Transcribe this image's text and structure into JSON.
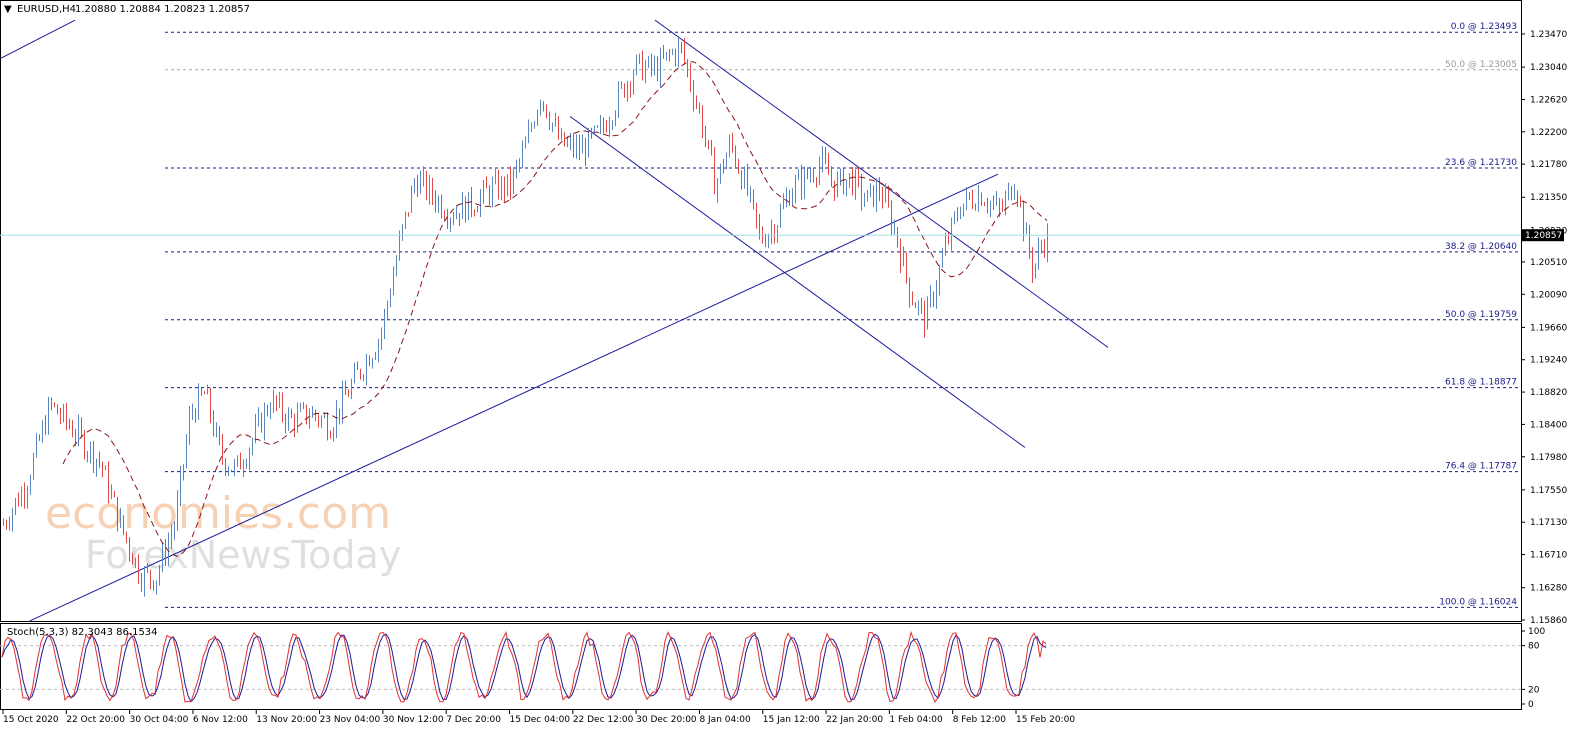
{
  "header": {
    "symbol": "EURUSD,H4",
    "ohlc": "1.20880 1.20884 1.20823 1.20857"
  },
  "watermark": {
    "line1": "economies.com",
    "line2": "ForexNewsToday"
  },
  "colors": {
    "bull": "#5b86c4",
    "bear": "#e04848",
    "ma": "#8b1515",
    "fib": "#1a1a8c",
    "trend": "#1a1a9c",
    "price_line": "#9fdfe6",
    "stoch_main": "#e03030",
    "stoch_signal": "#1a1a9c"
  },
  "price_label": "1.20857",
  "chart_data": {
    "type": "candlestick",
    "y_range": [
      1.1586,
      1.2347
    ],
    "y_ticks": [
      "1.23470",
      "1.23040",
      "1.22620",
      "1.22200",
      "1.21780",
      "1.21350",
      "1.20920",
      "1.20510",
      "1.20090",
      "1.19660",
      "1.19240",
      "1.18820",
      "1.18400",
      "1.17980",
      "1.17550",
      "1.17130",
      "1.16710",
      "1.16280",
      "1.15860"
    ],
    "x_labels": [
      "15 Oct 2020",
      "22 Oct 20:00",
      "30 Oct 04:00",
      "6 Nov 12:00",
      "13 Nov 20:00",
      "23 Nov 04:00",
      "30 Nov 12:00",
      "7 Dec 20:00",
      "15 Dec 04:00",
      "22 Dec 12:00",
      "30 Dec 20:00",
      "8 Jan 04:00",
      "15 Jan 12:00",
      "22 Jan 20:00",
      "1 Feb 04:00",
      "8 Feb 12:00",
      "15 Feb 20:00"
    ],
    "current_price": 1.20857,
    "close_path": [
      [
        0,
        1.1705
      ],
      [
        25,
        1.176
      ],
      [
        50,
        1.1865
      ],
      [
        75,
        1.183
      ],
      [
        100,
        1.179
      ],
      [
        120,
        1.171
      ],
      [
        140,
        1.1645
      ],
      [
        155,
        1.164
      ],
      [
        175,
        1.1715
      ],
      [
        190,
        1.1855
      ],
      [
        205,
        1.188
      ],
      [
        220,
        1.18
      ],
      [
        235,
        1.178
      ],
      [
        250,
        1.1815
      ],
      [
        270,
        1.187
      ],
      [
        290,
        1.1845
      ],
      [
        310,
        1.1855
      ],
      [
        330,
        1.184
      ],
      [
        355,
        1.19
      ],
      [
        380,
        1.1955
      ],
      [
        400,
        1.208
      ],
      [
        415,
        1.216
      ],
      [
        430,
        1.214
      ],
      [
        450,
        1.2115
      ],
      [
        470,
        1.2125
      ],
      [
        490,
        1.2145
      ],
      [
        510,
        1.215
      ],
      [
        525,
        1.22
      ],
      [
        540,
        1.227
      ],
      [
        560,
        1.2205
      ],
      [
        580,
        1.2195
      ],
      [
        600,
        1.222
      ],
      [
        620,
        1.227
      ],
      [
        635,
        1.2305
      ],
      [
        655,
        1.23
      ],
      [
        670,
        1.232
      ],
      [
        680,
        1.233
      ],
      [
        690,
        1.2285
      ],
      [
        700,
        1.224
      ],
      [
        715,
        1.215
      ],
      [
        730,
        1.2205
      ],
      [
        745,
        1.215
      ],
      [
        760,
        1.208
      ],
      [
        775,
        1.21
      ],
      [
        790,
        1.2145
      ],
      [
        805,
        1.216
      ],
      [
        820,
        1.218
      ],
      [
        835,
        1.215
      ],
      [
        850,
        1.216
      ],
      [
        865,
        1.213
      ],
      [
        880,
        1.2145
      ],
      [
        895,
        1.209
      ],
      [
        910,
        1.201
      ],
      [
        925,
        1.1975
      ],
      [
        935,
        1.202
      ],
      [
        945,
        1.207
      ],
      [
        960,
        1.2125
      ],
      [
        980,
        1.214
      ],
      [
        1000,
        1.2115
      ],
      [
        1015,
        1.216
      ],
      [
        1025,
        1.2085
      ],
      [
        1033,
        1.204
      ],
      [
        1040,
        1.207
      ],
      [
        1048,
        1.2086
      ]
    ],
    "fib_levels": [
      {
        "label": "0.0 @ 1.23493",
        "price": 1.23493,
        "style": "dark"
      },
      {
        "label": "50.0 @ 1.23005",
        "price": 1.23005,
        "style": "grey"
      },
      {
        "label": "23.6 @ 1.21730",
        "price": 1.2173,
        "style": "dark"
      },
      {
        "label": "38.2 @ 1.20640",
        "price": 1.2064,
        "style": "dark"
      },
      {
        "label": "50.0 @ 1.19759",
        "price": 1.19759,
        "style": "dark"
      },
      {
        "label": "61.8 @ 1.18877",
        "price": 1.18877,
        "style": "dark"
      },
      {
        "label": "76.4 @ 1.17787",
        "price": 1.17787,
        "style": "dark"
      },
      {
        "label": "100.0 @ 1.16024",
        "price": 1.16024,
        "style": "dark"
      }
    ],
    "trendlines": [
      {
        "from": [
          0,
          1.2315
        ],
        "to": [
          75,
          1.2365
        ]
      },
      {
        "from": [
          30,
          1.1585
        ],
        "to": [
          998,
          1.2165
        ]
      },
      {
        "from": [
          655,
          1.2365
        ],
        "to": [
          1108,
          1.194
        ]
      },
      {
        "from": [
          570,
          1.224
        ],
        "to": [
          1025,
          1.181
        ]
      }
    ],
    "stochastic": {
      "label": "Stoch(5,3,3) 82.3043 86.1534",
      "y_range": [
        0,
        100
      ],
      "y_ticks": [
        "100",
        "80",
        "20",
        "0"
      ],
      "levels": [
        80,
        20
      ]
    }
  }
}
